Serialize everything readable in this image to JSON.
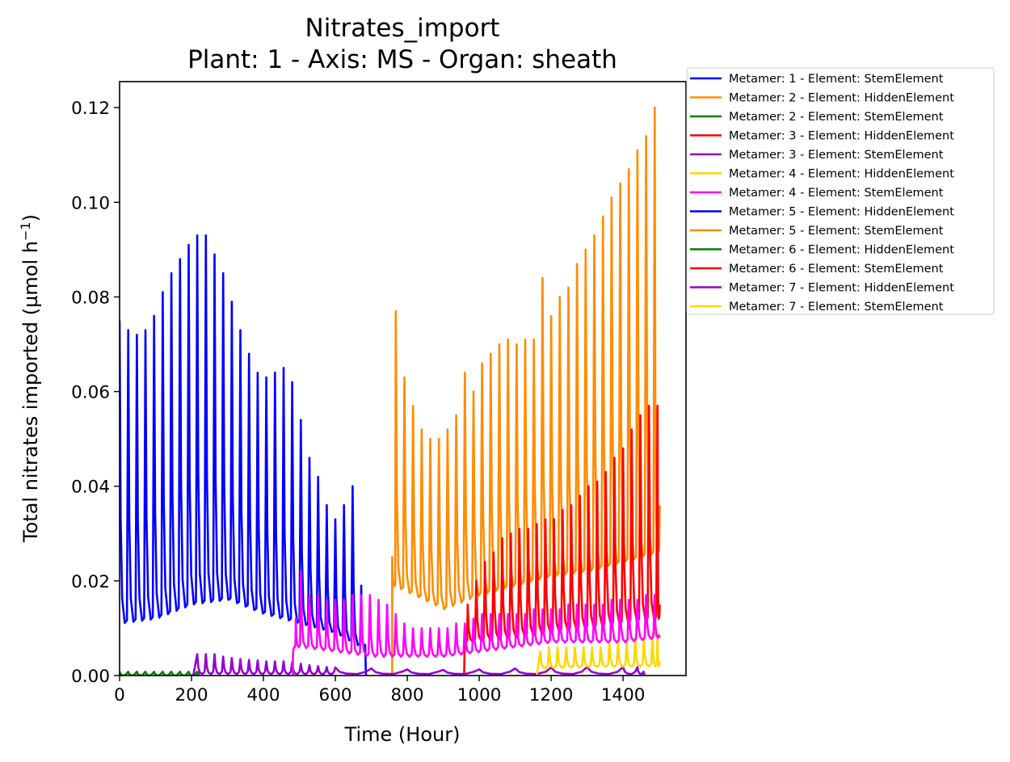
{
  "chart_data": {
    "type": "line",
    "title": "Nitrates_import",
    "subtitle": "Plant: 1 - Axis: MS - Organ: sheath",
    "xlabel": "Time (Hour)",
    "ylabel": "Total nitrates imported (µmol h",
    "ylabel_sup": "−1",
    "ylabel_close": ")",
    "xlim": [
      0,
      1575
    ],
    "ylim": [
      0,
      0.1255
    ],
    "x_ticks": [
      0,
      200,
      400,
      600,
      800,
      1000,
      1200,
      1400
    ],
    "x_tick_labels": [
      "0",
      "200",
      "400",
      "600",
      "800",
      "1000",
      "1200",
      "1400"
    ],
    "y_ticks": [
      0,
      0.02,
      0.04,
      0.06,
      0.08,
      0.1,
      0.12
    ],
    "y_tick_labels": [
      "0.00",
      "0.02",
      "0.04",
      "0.06",
      "0.08",
      "0.10",
      "0.12"
    ],
    "legend_position": "outside-right-top",
    "period_hours": 24,
    "series": [
      {
        "name": "Metamer: 1 - Element: StemElement",
        "color": "#0000ff",
        "start": 0,
        "end": 685,
        "peaks": [
          [
            0,
            0.075
          ],
          [
            24,
            0.073
          ],
          [
            48,
            0.072
          ],
          [
            72,
            0.073
          ],
          [
            96,
            0.076
          ],
          [
            120,
            0.081
          ],
          [
            144,
            0.085
          ],
          [
            168,
            0.088
          ],
          [
            192,
            0.091
          ],
          [
            216,
            0.093
          ],
          [
            240,
            0.093
          ],
          [
            264,
            0.089
          ],
          [
            288,
            0.085
          ],
          [
            312,
            0.079
          ],
          [
            336,
            0.073
          ],
          [
            360,
            0.068
          ],
          [
            384,
            0.064
          ],
          [
            408,
            0.063
          ],
          [
            432,
            0.064
          ],
          [
            456,
            0.065
          ],
          [
            480,
            0.062
          ],
          [
            504,
            0.054
          ],
          [
            528,
            0.046
          ],
          [
            552,
            0.042
          ],
          [
            576,
            0.036
          ],
          [
            600,
            0.033
          ],
          [
            624,
            0.036
          ],
          [
            648,
            0.04
          ],
          [
            672,
            0.019
          ]
        ],
        "troughs": [
          [
            0,
            0.011
          ],
          [
            100,
            0.012
          ],
          [
            200,
            0.015
          ],
          [
            300,
            0.016
          ],
          [
            400,
            0.013
          ],
          [
            500,
            0.011
          ],
          [
            600,
            0.009
          ],
          [
            670,
            0.006
          ]
        ],
        "tail": 0
      },
      {
        "name": "Metamer: 2 - Element: HiddenElement",
        "color": "#ff8c00",
        "start": 758,
        "end": 1502,
        "peaks": [
          [
            758,
            0.025
          ],
          [
            768,
            0.077
          ],
          [
            792,
            0.063
          ],
          [
            816,
            0.057
          ],
          [
            840,
            0.052
          ],
          [
            864,
            0.05
          ],
          [
            888,
            0.05
          ],
          [
            912,
            0.052
          ],
          [
            936,
            0.055
          ],
          [
            960,
            0.064
          ],
          [
            984,
            0.06
          ],
          [
            1008,
            0.066
          ],
          [
            1032,
            0.068
          ],
          [
            1056,
            0.07
          ],
          [
            1080,
            0.071
          ],
          [
            1104,
            0.07
          ],
          [
            1128,
            0.071
          ],
          [
            1152,
            0.071
          ],
          [
            1176,
            0.084
          ],
          [
            1200,
            0.076
          ],
          [
            1224,
            0.08
          ],
          [
            1248,
            0.082
          ],
          [
            1272,
            0.087
          ],
          [
            1296,
            0.09
          ],
          [
            1320,
            0.093
          ],
          [
            1344,
            0.097
          ],
          [
            1368,
            0.101
          ],
          [
            1392,
            0.104
          ],
          [
            1416,
            0.107
          ],
          [
            1440,
            0.111
          ],
          [
            1464,
            0.114
          ],
          [
            1488,
            0.12
          ]
        ],
        "troughs": [
          [
            760,
            0.019
          ],
          [
            900,
            0.014
          ],
          [
            1000,
            0.017
          ],
          [
            1100,
            0.019
          ],
          [
            1200,
            0.021
          ],
          [
            1300,
            0.022
          ],
          [
            1400,
            0.024
          ],
          [
            1500,
            0.026
          ]
        ],
        "tail": 0.036
      },
      {
        "name": "Metamer: 2 - Element: StemElement",
        "color": "#008000",
        "start": 0,
        "end": 220,
        "peaks": [
          [
            0,
            0.0008
          ],
          [
            24,
            0.0008
          ],
          [
            48,
            0.0008
          ],
          [
            72,
            0.0008
          ],
          [
            96,
            0.0008
          ],
          [
            120,
            0.0008
          ],
          [
            144,
            0.0008
          ],
          [
            168,
            0.0008
          ],
          [
            192,
            0.0008
          ],
          [
            216,
            0.0008
          ]
        ],
        "troughs": [
          [
            0,
            0.0
          ],
          [
            220,
            0.0
          ]
        ],
        "tail": 0
      },
      {
        "name": "Metamer: 3 - Element: HiddenElement",
        "color": "#ff0000",
        "start": 958,
        "end": 1502,
        "peaks": [
          [
            958,
            0.0
          ],
          [
            968,
            0.015
          ],
          [
            992,
            0.02
          ],
          [
            1016,
            0.024
          ],
          [
            1040,
            0.026
          ],
          [
            1064,
            0.029
          ],
          [
            1088,
            0.03
          ],
          [
            1112,
            0.031
          ],
          [
            1136,
            0.031
          ],
          [
            1160,
            0.032
          ],
          [
            1184,
            0.033
          ],
          [
            1208,
            0.033
          ],
          [
            1232,
            0.035
          ],
          [
            1256,
            0.036
          ],
          [
            1280,
            0.038
          ],
          [
            1304,
            0.04
          ],
          [
            1328,
            0.041
          ],
          [
            1352,
            0.043
          ],
          [
            1376,
            0.046
          ],
          [
            1400,
            0.048
          ],
          [
            1424,
            0.052
          ],
          [
            1448,
            0.055
          ],
          [
            1472,
            0.057
          ],
          [
            1496,
            0.057
          ]
        ],
        "troughs": [
          [
            966,
            0.007
          ],
          [
            1100,
            0.008
          ],
          [
            1200,
            0.009
          ],
          [
            1300,
            0.01
          ],
          [
            1400,
            0.011
          ],
          [
            1500,
            0.012
          ]
        ],
        "tail": 0.015
      },
      {
        "name": "Metamer: 3 - Element: StemElement",
        "color": "#9400d3",
        "start": 205,
        "end": 1460,
        "peaks": [
          [
            216,
            0.0045
          ],
          [
            240,
            0.0045
          ],
          [
            264,
            0.0045
          ],
          [
            288,
            0.004
          ],
          [
            312,
            0.0037
          ],
          [
            336,
            0.0035
          ],
          [
            360,
            0.0033
          ],
          [
            384,
            0.0032
          ],
          [
            408,
            0.003
          ],
          [
            432,
            0.003
          ],
          [
            456,
            0.003
          ],
          [
            480,
            0.0028
          ],
          [
            504,
            0.0025
          ],
          [
            528,
            0.0022
          ],
          [
            552,
            0.002
          ],
          [
            576,
            0.0018
          ],
          [
            600,
            0.0017
          ],
          [
            700,
            0.0015
          ],
          [
            800,
            0.0013
          ],
          [
            900,
            0.0012
          ],
          [
            1000,
            0.0013
          ],
          [
            1100,
            0.0015
          ],
          [
            1200,
            0.0017
          ],
          [
            1300,
            0.0018
          ],
          [
            1400,
            0.0018
          ],
          [
            1440,
            0.0018
          ]
        ],
        "troughs": [
          [
            205,
            0.0003
          ],
          [
            600,
            0.0003
          ],
          [
            1000,
            0.0003
          ],
          [
            1440,
            0.0003
          ]
        ],
        "tail": 0
      },
      {
        "name": "Metamer: 4 - Element: HiddenElement",
        "color": "#ffd700",
        "start": 1160,
        "end": 1502,
        "peaks": [
          [
            1170,
            0.005
          ],
          [
            1194,
            0.006
          ],
          [
            1218,
            0.006
          ],
          [
            1242,
            0.006
          ],
          [
            1266,
            0.006
          ],
          [
            1290,
            0.006
          ],
          [
            1314,
            0.006
          ],
          [
            1338,
            0.006
          ],
          [
            1362,
            0.007
          ],
          [
            1386,
            0.007
          ],
          [
            1410,
            0.007
          ],
          [
            1434,
            0.008
          ],
          [
            1458,
            0.008
          ],
          [
            1482,
            0.009
          ],
          [
            1496,
            0.009
          ]
        ],
        "troughs": [
          [
            1165,
            0.0015
          ],
          [
            1300,
            0.0018
          ],
          [
            1500,
            0.002
          ]
        ],
        "tail": 0.003
      },
      {
        "name": "Metamer: 4 - Element: StemElement",
        "color": "#ff00ff",
        "start": 482,
        "end": 1502,
        "peaks": [
          [
            482,
            0.004
          ],
          [
            490,
            0.012
          ],
          [
            504,
            0.022
          ],
          [
            528,
            0.017
          ],
          [
            552,
            0.017
          ],
          [
            576,
            0.016
          ],
          [
            600,
            0.016
          ],
          [
            624,
            0.016
          ],
          [
            648,
            0.017
          ],
          [
            672,
            0.017
          ],
          [
            696,
            0.017
          ],
          [
            720,
            0.016
          ],
          [
            744,
            0.015
          ],
          [
            768,
            0.013
          ],
          [
            792,
            0.011
          ],
          [
            816,
            0.01
          ],
          [
            840,
            0.01
          ],
          [
            864,
            0.01
          ],
          [
            888,
            0.01
          ],
          [
            912,
            0.01
          ],
          [
            936,
            0.011
          ],
          [
            960,
            0.011
          ],
          [
            984,
            0.012
          ],
          [
            1008,
            0.013
          ],
          [
            1032,
            0.013
          ],
          [
            1056,
            0.013
          ],
          [
            1080,
            0.013
          ],
          [
            1104,
            0.013
          ],
          [
            1128,
            0.013
          ],
          [
            1152,
            0.014
          ],
          [
            1176,
            0.014
          ],
          [
            1200,
            0.014
          ],
          [
            1224,
            0.014
          ],
          [
            1248,
            0.015
          ],
          [
            1272,
            0.015
          ],
          [
            1296,
            0.015
          ],
          [
            1320,
            0.015
          ],
          [
            1344,
            0.015
          ],
          [
            1368,
            0.016
          ],
          [
            1392,
            0.016
          ],
          [
            1416,
            0.016
          ],
          [
            1440,
            0.016
          ],
          [
            1464,
            0.017
          ],
          [
            1488,
            0.017
          ]
        ],
        "troughs": [
          [
            500,
            0.006
          ],
          [
            600,
            0.005
          ],
          [
            700,
            0.004
          ],
          [
            800,
            0.004
          ],
          [
            900,
            0.004
          ],
          [
            1000,
            0.005
          ],
          [
            1100,
            0.006
          ],
          [
            1200,
            0.007
          ],
          [
            1300,
            0.007
          ],
          [
            1400,
            0.007
          ],
          [
            1500,
            0.008
          ]
        ],
        "tail": 0.008
      },
      {
        "name": "Metamer: 5 - Element: HiddenElement",
        "color": "#0000ff",
        "values": []
      },
      {
        "name": "Metamer: 5 - Element: StemElement",
        "color": "#ff8c00",
        "values": []
      },
      {
        "name": "Metamer: 6 - Element: HiddenElement",
        "color": "#008000",
        "values": []
      },
      {
        "name": "Metamer: 6 - Element: StemElement",
        "color": "#ff0000",
        "values": []
      },
      {
        "name": "Metamer: 7 - Element: HiddenElement",
        "color": "#9400d3",
        "values": []
      },
      {
        "name": "Metamer: 7 - Element: StemElement",
        "color": "#ffd700",
        "values": []
      }
    ]
  }
}
